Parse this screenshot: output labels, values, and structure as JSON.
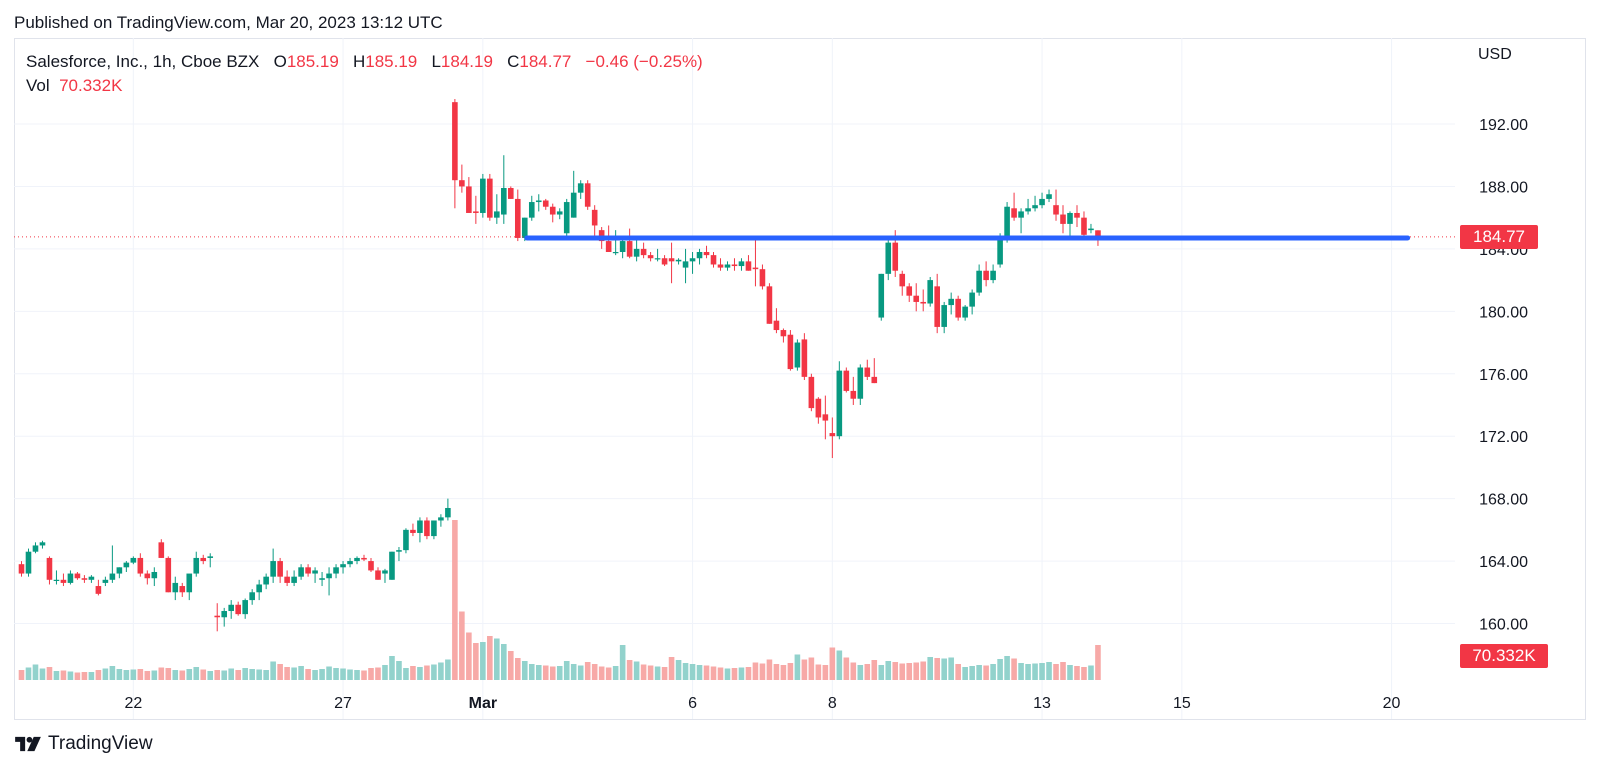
{
  "header": {
    "published": "Published on TradingView.com, Mar 20, 2023 13:12 UTC"
  },
  "legend": {
    "symbol": "Salesforce, Inc., 1h, Cboe BZX",
    "o_label": "O",
    "o_value": "185.19",
    "h_label": "H",
    "h_value": "185.19",
    "l_label": "L",
    "l_value": "184.19",
    "c_label": "C",
    "c_value": "184.77",
    "change": "−0.46 (−0.25%)",
    "vol_label": "Vol",
    "vol_value": "70.332K"
  },
  "axis": {
    "currency": "USD",
    "last_price_label": "184.77",
    "last_volume_label": "70.332K"
  },
  "footer": {
    "brand": "TradingView"
  },
  "colors": {
    "up": "#089981",
    "down": "#f23645",
    "up_vol": "#92d2cc",
    "down_vol": "#f7a9a7",
    "support_line": "#2962ff",
    "price_line": "#f23645"
  },
  "chart_data": {
    "type": "candlestick",
    "title": "Salesforce, Inc., 1h, Cboe BZX",
    "ylabel": "USD",
    "ylim": [
      157.5,
      195.5
    ],
    "y_ticks": [
      160,
      164,
      168,
      172,
      176,
      180,
      184,
      188,
      192
    ],
    "y_tick_labels": [
      "160.00",
      "164.00",
      "168.00",
      "172.00",
      "176.00",
      "180.00",
      "184.00",
      "188.00",
      "192.00"
    ],
    "x_ticks": [
      {
        "label": "22",
        "bar": 16
      },
      {
        "label": "27",
        "bar": 46
      },
      {
        "label": "Mar",
        "bar": 66
      },
      {
        "label": "6",
        "bar": 96
      },
      {
        "label": "8",
        "bar": 116
      },
      {
        "label": "13",
        "bar": 146
      },
      {
        "label": "15",
        "bar": 166
      },
      {
        "label": "20",
        "bar": 196
      }
    ],
    "last_price": 184.77,
    "support_level": 184.7,
    "support_range_bars": [
      72.3,
      198.3
    ],
    "candles": [
      [
        163.8,
        164.0,
        163.0,
        163.2,
        2.0
      ],
      [
        163.2,
        164.8,
        163.0,
        164.6,
        2.5
      ],
      [
        164.6,
        165.2,
        164.5,
        165.0,
        3.1
      ],
      [
        165.0,
        165.3,
        164.8,
        165.2,
        2.3
      ],
      [
        164.2,
        164.3,
        162.5,
        162.8,
        2.6
      ],
      [
        162.8,
        163.4,
        162.5,
        162.8,
        1.8
      ],
      [
        162.8,
        163.2,
        162.4,
        162.6,
        1.9
      ],
      [
        162.6,
        163.4,
        162.5,
        163.2,
        1.7
      ],
      [
        163.2,
        163.3,
        162.8,
        162.9,
        1.5
      ],
      [
        162.9,
        163.1,
        162.6,
        162.8,
        1.6
      ],
      [
        162.8,
        163.1,
        162.6,
        163.0,
        1.6
      ],
      [
        162.4,
        162.8,
        161.8,
        161.9,
        2.0
      ],
      [
        162.6,
        163.0,
        162.4,
        162.8,
        2.3
      ],
      [
        162.8,
        165.0,
        162.6,
        163.2,
        2.8
      ],
      [
        163.2,
        163.6,
        162.9,
        163.6,
        2.2
      ],
      [
        163.6,
        164.0,
        163.3,
        163.9,
        2.0
      ],
      [
        163.9,
        164.3,
        163.8,
        164.2,
        2.1
      ],
      [
        164.2,
        164.5,
        163.0,
        163.2,
        2.2
      ],
      [
        163.2,
        163.4,
        162.5,
        162.9,
        1.8
      ],
      [
        162.9,
        163.6,
        162.4,
        163.3,
        1.9
      ],
      [
        165.2,
        165.4,
        164.2,
        164.2,
        2.5
      ],
      [
        164.2,
        164.3,
        162.0,
        162.0,
        2.4
      ],
      [
        162.0,
        163.0,
        161.5,
        162.6,
        2.0
      ],
      [
        162.4,
        162.6,
        161.7,
        162.0,
        1.9
      ],
      [
        162.0,
        163.0,
        161.5,
        163.2,
        2.2
      ],
      [
        163.2,
        164.6,
        163.0,
        164.2,
        2.6
      ],
      [
        164.2,
        164.4,
        163.8,
        164.0,
        2.1
      ],
      [
        164.2,
        164.5,
        163.6,
        164.3,
        1.8
      ],
      [
        160.5,
        161.3,
        159.5,
        160.4,
        2.0
      ],
      [
        160.4,
        161.0,
        159.8,
        160.8,
        1.9
      ],
      [
        160.8,
        161.5,
        160.3,
        161.2,
        2.3
      ],
      [
        161.2,
        161.4,
        160.5,
        160.6,
        2.0
      ],
      [
        160.6,
        161.6,
        160.3,
        161.5,
        2.4
      ],
      [
        161.5,
        162.2,
        161.2,
        162.0,
        2.2
      ],
      [
        162.0,
        162.8,
        161.5,
        162.5,
        2.1
      ],
      [
        162.5,
        163.2,
        162.2,
        163.0,
        2.0
      ],
      [
        163.0,
        164.8,
        162.6,
        164.0,
        3.7
      ],
      [
        164.0,
        164.2,
        162.6,
        163.0,
        3.2
      ],
      [
        163.0,
        163.4,
        162.4,
        162.6,
        2.6
      ],
      [
        162.6,
        163.4,
        162.4,
        163.0,
        2.5
      ],
      [
        163.0,
        163.8,
        162.8,
        163.6,
        2.8
      ],
      [
        163.6,
        163.8,
        163.0,
        163.2,
        2.2
      ],
      [
        163.2,
        163.6,
        162.6,
        163.4,
        2.0
      ],
      [
        162.8,
        163.3,
        162.4,
        162.9,
        2.2
      ],
      [
        162.9,
        163.6,
        161.8,
        163.2,
        2.7
      ],
      [
        163.2,
        163.8,
        162.9,
        163.6,
        2.4
      ],
      [
        163.6,
        164.0,
        163.2,
        163.8,
        2.3
      ],
      [
        163.8,
        164.2,
        163.6,
        164.0,
        2.1
      ],
      [
        164.0,
        164.3,
        163.8,
        164.2,
        2.0
      ],
      [
        164.2,
        164.4,
        164.0,
        164.1,
        1.9
      ],
      [
        164.0,
        164.2,
        163.3,
        163.4,
        2.4
      ],
      [
        163.4,
        163.6,
        162.8,
        162.8,
        2.5
      ],
      [
        163.2,
        163.5,
        162.6,
        163.4,
        3.0
      ],
      [
        162.8,
        164.6,
        162.8,
        164.6,
        4.8
      ],
      [
        164.6,
        164.9,
        164.0,
        164.7,
        3.8
      ],
      [
        164.7,
        166.1,
        164.5,
        166.0,
        2.4
      ],
      [
        166.0,
        166.4,
        165.6,
        165.8,
        2.8
      ],
      [
        165.8,
        166.8,
        165.2,
        166.6,
        2.6
      ],
      [
        166.6,
        166.8,
        165.4,
        165.6,
        2.9
      ],
      [
        165.6,
        166.6,
        165.4,
        166.6,
        3.1
      ],
      [
        166.6,
        167.0,
        166.2,
        166.8,
        3.5
      ],
      [
        166.8,
        168.0,
        166.6,
        167.4,
        4.1
      ],
      [
        193.4,
        193.6,
        186.6,
        188.4,
        32.0
      ],
      [
        188.4,
        189.4,
        187.6,
        188.0,
        13.7
      ],
      [
        188.0,
        188.6,
        186.4,
        186.3,
        9.5
      ],
      [
        186.4,
        187.4,
        185.6,
        186.3,
        7.4
      ],
      [
        186.3,
        188.8,
        186.0,
        188.5,
        7.6
      ],
      [
        188.5,
        188.8,
        185.8,
        186.0,
        8.8
      ],
      [
        186.0,
        187.5,
        185.6,
        186.4,
        8.3
      ],
      [
        186.2,
        190.0,
        185.6,
        187.9,
        7.2
      ],
      [
        187.9,
        188.0,
        187.2,
        187.2,
        5.8
      ],
      [
        187.2,
        187.8,
        184.5,
        184.7,
        4.4
      ],
      [
        184.7,
        186.0,
        184.5,
        186.0,
        3.8
      ],
      [
        186.0,
        187.4,
        185.8,
        187.0,
        3.2
      ],
      [
        187.0,
        187.5,
        186.4,
        187.1,
        3.0
      ],
      [
        187.1,
        187.2,
        186.5,
        186.7,
        2.9
      ],
      [
        186.7,
        186.9,
        185.7,
        186.2,
        2.7
      ],
      [
        186.2,
        186.6,
        185.9,
        186.4,
        2.8
      ],
      [
        185.0,
        187.2,
        184.8,
        187.0,
        3.8
      ],
      [
        186.0,
        189.0,
        186.0,
        187.6,
        3.2
      ],
      [
        187.6,
        188.4,
        187.2,
        188.2,
        2.9
      ],
      [
        188.2,
        188.4,
        186.5,
        186.7,
        3.6
      ],
      [
        186.5,
        186.8,
        184.8,
        185.5,
        3.2
      ],
      [
        185.2,
        185.4,
        184.0,
        184.5,
        2.7
      ],
      [
        184.5,
        185.5,
        183.8,
        183.8,
        2.5
      ],
      [
        183.8,
        185.2,
        183.6,
        183.8,
        2.8
      ],
      [
        183.8,
        184.6,
        183.4,
        184.5,
        7.0
      ],
      [
        184.5,
        185.3,
        183.4,
        183.5,
        4.0
      ],
      [
        183.5,
        184.8,
        183.2,
        184.0,
        3.7
      ],
      [
        184.0,
        184.4,
        183.4,
        183.6,
        3.1
      ],
      [
        183.6,
        183.8,
        183.2,
        183.4,
        2.9
      ],
      [
        183.4,
        184.0,
        183.2,
        183.4,
        2.7
      ],
      [
        183.4,
        183.6,
        182.9,
        183.0,
        2.6
      ],
      [
        183.4,
        184.4,
        181.8,
        183.2,
        4.6
      ],
      [
        183.2,
        183.4,
        183.0,
        183.3,
        4.0
      ],
      [
        182.8,
        184.0,
        181.8,
        183.2,
        3.4
      ],
      [
        183.2,
        183.8,
        182.4,
        183.4,
        3.2
      ],
      [
        183.4,
        184.0,
        183.0,
        183.8,
        3.0
      ],
      [
        183.8,
        184.2,
        183.4,
        183.6,
        2.9
      ],
      [
        183.6,
        183.8,
        182.8,
        183.0,
        2.7
      ],
      [
        183.0,
        183.4,
        182.6,
        182.8,
        2.5
      ],
      [
        182.8,
        183.2,
        182.6,
        183.0,
        2.3
      ],
      [
        183.0,
        183.4,
        182.6,
        182.9,
        2.4
      ],
      [
        182.9,
        183.4,
        182.6,
        183.2,
        2.5
      ],
      [
        183.2,
        183.6,
        182.6,
        182.6,
        2.6
      ],
      [
        182.8,
        184.8,
        181.6,
        182.7,
        3.5
      ],
      [
        182.7,
        183.0,
        181.4,
        181.6,
        3.3
      ],
      [
        181.6,
        181.8,
        179.2,
        179.2,
        4.1
      ],
      [
        179.4,
        180.2,
        178.6,
        178.8,
        3.2
      ],
      [
        178.8,
        178.9,
        178.0,
        178.4,
        3.0
      ],
      [
        178.5,
        178.8,
        176.2,
        176.3,
        3.4
      ],
      [
        176.4,
        178.2,
        176.2,
        178.0,
        5.1
      ],
      [
        178.2,
        178.6,
        175.6,
        175.8,
        4.1
      ],
      [
        175.8,
        176.0,
        173.6,
        173.8,
        4.5
      ],
      [
        174.4,
        174.5,
        172.8,
        173.2,
        3.1
      ],
      [
        173.4,
        174.6,
        171.8,
        173.0,
        3.0
      ],
      [
        172.2,
        173.2,
        170.6,
        172.0,
        6.5
      ],
      [
        172.0,
        176.8,
        171.8,
        176.2,
        5.9
      ],
      [
        176.2,
        176.4,
        174.8,
        174.9,
        4.5
      ],
      [
        174.9,
        175.8,
        174.0,
        174.4,
        3.5
      ],
      [
        174.4,
        176.6,
        174.0,
        176.4,
        3.0
      ],
      [
        176.4,
        176.9,
        175.6,
        175.8,
        3.2
      ],
      [
        175.8,
        177.0,
        175.4,
        175.4,
        4.0
      ],
      [
        179.6,
        182.4,
        179.4,
        182.4,
        3.0
      ],
      [
        182.4,
        184.8,
        182.0,
        184.4,
        3.8
      ],
      [
        184.4,
        185.2,
        182.2,
        182.6,
        3.6
      ],
      [
        182.4,
        182.6,
        181.0,
        181.6,
        3.3
      ],
      [
        181.6,
        181.8,
        180.6,
        181.0,
        3.4
      ],
      [
        181.0,
        181.8,
        180.0,
        180.6,
        3.5
      ],
      [
        180.6,
        181.4,
        180.0,
        180.5,
        3.7
      ],
      [
        180.5,
        182.2,
        180.3,
        182.0,
        4.6
      ],
      [
        181.6,
        182.4,
        178.6,
        179.0,
        4.4
      ],
      [
        179.0,
        180.6,
        178.6,
        180.4,
        4.3
      ],
      [
        180.4,
        181.2,
        179.8,
        180.8,
        4.5
      ],
      [
        180.8,
        181.0,
        179.4,
        179.6,
        3.2
      ],
      [
        179.6,
        180.4,
        179.4,
        180.3,
        2.6
      ],
      [
        180.3,
        181.4,
        179.8,
        181.2,
        2.8
      ],
      [
        181.2,
        183.0,
        181.0,
        182.6,
        3.0
      ],
      [
        182.6,
        183.2,
        181.6,
        182.0,
        2.9
      ],
      [
        182.0,
        183.0,
        181.8,
        182.6,
        3.2
      ],
      [
        183.0,
        185.0,
        182.8,
        184.6,
        4.2
      ],
      [
        184.6,
        187.0,
        184.4,
        186.7,
        4.8
      ],
      [
        186.6,
        187.6,
        185.8,
        186.0,
        4.3
      ],
      [
        186.0,
        186.6,
        185.0,
        186.4,
        3.4
      ],
      [
        186.4,
        187.2,
        186.2,
        186.6,
        3.2
      ],
      [
        186.6,
        187.4,
        186.4,
        186.8,
        3.3
      ],
      [
        186.8,
        187.6,
        186.6,
        187.2,
        3.4
      ],
      [
        187.2,
        187.8,
        187.0,
        187.5,
        3.6
      ],
      [
        186.8,
        187.8,
        185.8,
        186.2,
        3.2
      ],
      [
        186.2,
        186.8,
        185.0,
        185.6,
        3.6
      ],
      [
        185.6,
        186.4,
        184.8,
        186.3,
        3.0
      ],
      [
        186.3,
        186.8,
        185.4,
        186.0,
        2.8
      ],
      [
        186.0,
        186.4,
        184.8,
        184.9,
        2.6
      ],
      [
        185.2,
        185.6,
        185.0,
        185.3,
        2.9
      ],
      [
        185.19,
        185.19,
        184.19,
        184.77,
        7.0
      ]
    ]
  }
}
